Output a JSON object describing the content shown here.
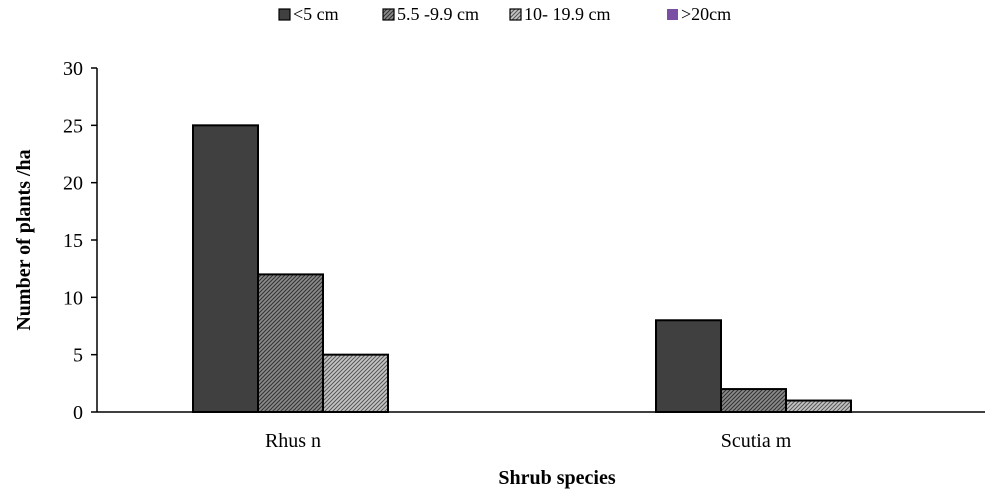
{
  "chart_data": {
    "type": "bar",
    "title": "",
    "xlabel": "Shrub species",
    "ylabel": "Number of plants /ha",
    "categories": [
      "Rhus n",
      "Scutia m"
    ],
    "ylim": [
      0,
      30
    ],
    "yticks": [
      "0",
      "5",
      "10",
      "15",
      "20",
      "25",
      "30"
    ],
    "grid": false,
    "legend_position": "top",
    "series": [
      {
        "name": "<5 cm",
        "values": [
          25,
          8
        ],
        "pattern": "solid",
        "color": "#404040"
      },
      {
        "name": "5.5 -9.9 cm",
        "values": [
          12,
          2
        ],
        "pattern": "hatch-dense",
        "color": "#6e6e6e"
      },
      {
        "name": "10- 19.9 cm",
        "values": [
          5,
          1
        ],
        "pattern": "hatch-light",
        "color": "#a8a8a8"
      },
      {
        "name": ">20cm",
        "values": [
          0,
          0
        ],
        "pattern": "solid",
        "color": "#7a4fa3"
      }
    ]
  }
}
